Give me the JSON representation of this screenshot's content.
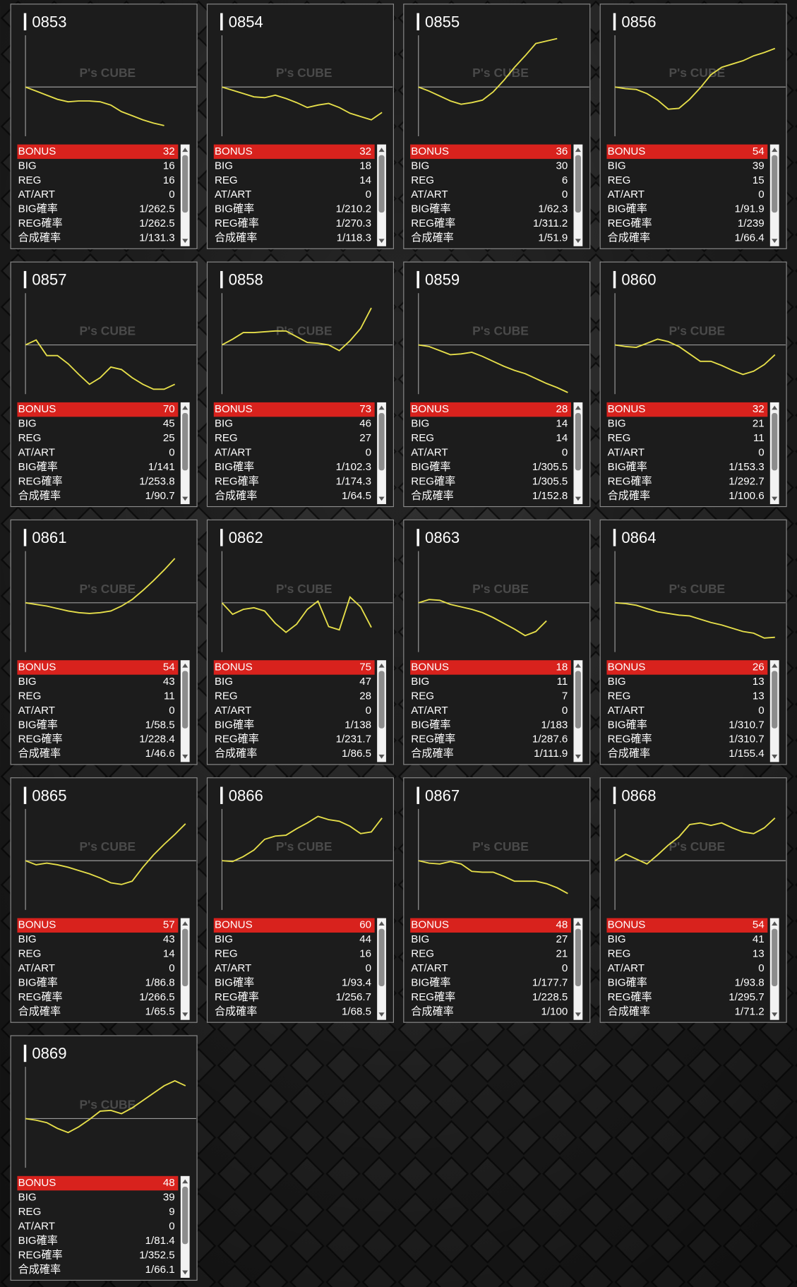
{
  "row_labels": [
    "BONUS",
    "BIG",
    "REG",
    "AT/ART",
    "BIG確率",
    "REG確率",
    "合成確率"
  ],
  "watermark": "P's CUBE",
  "trend_xlim": [
    0,
    16
  ],
  "trend_ylim": [
    -60,
    60
  ],
  "machines": [
    {
      "id": "0853",
      "stats": [
        32,
        16,
        16,
        0,
        "1/262.5",
        "1/262.5",
        "1/131.3"
      ],
      "trend": [
        0,
        -5,
        -10,
        -15,
        -18,
        -17,
        -17,
        -18,
        -22,
        -30,
        -35,
        -40,
        -44,
        -47
      ]
    },
    {
      "id": "0854",
      "stats": [
        32,
        18,
        14,
        0,
        "1/210.2",
        "1/270.3",
        "1/118.3"
      ],
      "trend": [
        0,
        -4,
        -8,
        -12,
        -13,
        -10,
        -14,
        -19,
        -25,
        -22,
        -20,
        -25,
        -32,
        -36,
        -40,
        -31
      ]
    },
    {
      "id": "0855",
      "stats": [
        36,
        30,
        6,
        0,
        "1/62.3",
        "1/311.2",
        "1/51.9"
      ],
      "trend": [
        0,
        -5,
        -11,
        -17,
        -21,
        -19,
        -16,
        -6,
        8,
        24,
        38,
        53,
        56,
        59
      ]
    },
    {
      "id": "0856",
      "stats": [
        54,
        39,
        15,
        0,
        "1/91.9",
        "1/239",
        "1/66.4"
      ],
      "trend": [
        0,
        -2,
        -3,
        -8,
        -16,
        -27,
        -26,
        -15,
        -1,
        15,
        24,
        28,
        32,
        38,
        42,
        47
      ]
    },
    {
      "id": "0857",
      "stats": [
        70,
        45,
        25,
        0,
        "1/141",
        "1/253.8",
        "1/90.7"
      ],
      "trend": [
        0,
        6,
        -13,
        -13,
        -23,
        -36,
        -48,
        -40,
        -27,
        -30,
        -40,
        -48,
        -54,
        -54,
        -48
      ]
    },
    {
      "id": "0858",
      "stats": [
        73,
        46,
        27,
        0,
        "1/102.3",
        "1/174.3",
        "1/64.5"
      ],
      "trend": [
        0,
        7,
        15,
        15,
        16,
        17,
        17,
        10,
        3,
        2,
        0,
        -7,
        5,
        20,
        45
      ]
    },
    {
      "id": "0859",
      "stats": [
        28,
        14,
        14,
        0,
        "1/305.5",
        "1/305.5",
        "1/152.8"
      ],
      "trend": [
        0,
        -2,
        -7,
        -12,
        -11,
        -9,
        -14,
        -20,
        -26,
        -31,
        -35,
        -41,
        -47,
        -52,
        -58
      ]
    },
    {
      "id": "0860",
      "stats": [
        32,
        21,
        11,
        0,
        "1/153.3",
        "1/292.7",
        "1/100.6"
      ],
      "trend": [
        0,
        -2,
        -3,
        2,
        7,
        4,
        -2,
        -11,
        -20,
        -20,
        -25,
        -31,
        -36,
        -32,
        -24,
        -12
      ]
    },
    {
      "id": "0861",
      "stats": [
        54,
        43,
        11,
        0,
        "1/58.5",
        "1/228.4",
        "1/46.6"
      ],
      "trend": [
        0,
        -2,
        -4,
        -7,
        -10,
        -12,
        -13,
        -12,
        -10,
        -4,
        4,
        15,
        27,
        40,
        54
      ]
    },
    {
      "id": "0862",
      "stats": [
        75,
        47,
        28,
        0,
        "1/138",
        "1/231.7",
        "1/86.5"
      ],
      "trend": [
        0,
        -14,
        -8,
        -6,
        -10,
        -25,
        -36,
        -26,
        -8,
        2,
        -29,
        -33,
        7,
        -5,
        -30
      ]
    },
    {
      "id": "0863",
      "stats": [
        18,
        11,
        7,
        0,
        "1/183",
        "1/287.6",
        "1/111.9"
      ],
      "trend": [
        0,
        4,
        3,
        -2,
        -5,
        -8,
        -12,
        -18,
        -25,
        -32,
        -40,
        -35,
        -22
      ]
    },
    {
      "id": "0864",
      "stats": [
        26,
        13,
        13,
        0,
        "1/310.7",
        "1/310.7",
        "1/155.4"
      ],
      "trend": [
        0,
        -1,
        -3,
        -7,
        -11,
        -13,
        -15,
        -16,
        -20,
        -24,
        -27,
        -31,
        -35,
        -37,
        -43,
        -42
      ]
    },
    {
      "id": "0865",
      "stats": [
        57,
        43,
        14,
        0,
        "1/86.8",
        "1/266.5",
        "1/65.5"
      ],
      "trend": [
        0,
        -5,
        -3,
        -5,
        -8,
        -12,
        -16,
        -21,
        -27,
        -29,
        -25,
        -8,
        7,
        20,
        32,
        45
      ]
    },
    {
      "id": "0866",
      "stats": [
        60,
        44,
        16,
        0,
        "1/93.4",
        "1/256.7",
        "1/68.5"
      ],
      "trend": [
        0,
        -1,
        5,
        13,
        26,
        30,
        31,
        39,
        46,
        54,
        50,
        48,
        42,
        33,
        35,
        52
      ]
    },
    {
      "id": "0867",
      "stats": [
        48,
        27,
        21,
        0,
        "1/177.7",
        "1/228.5",
        "1/100"
      ],
      "trend": [
        0,
        -3,
        -4,
        -1,
        -4,
        -13,
        -14,
        -14,
        -19,
        -25,
        -25,
        -25,
        -28,
        -33,
        -40
      ]
    },
    {
      "id": "0868",
      "stats": [
        54,
        41,
        13,
        0,
        "1/93.8",
        "1/295.7",
        "1/71.2"
      ],
      "trend": [
        0,
        8,
        2,
        -4,
        7,
        19,
        29,
        44,
        46,
        43,
        46,
        40,
        35,
        33,
        40,
        52
      ]
    },
    {
      "id": "0869",
      "stats": [
        48,
        39,
        9,
        0,
        "1/81.4",
        "1/352.5",
        "1/66.1"
      ],
      "trend": [
        0,
        -2,
        -5,
        -12,
        -17,
        -10,
        -1,
        9,
        10,
        6,
        13,
        22,
        31,
        40,
        46,
        40
      ]
    }
  ]
}
